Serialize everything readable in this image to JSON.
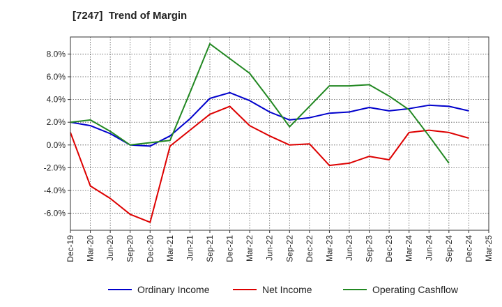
{
  "chart_data": {
    "type": "line",
    "title": "[7247]  Trend of Margin",
    "xlabel": "",
    "ylabel": "",
    "ylim": [
      -7.5,
      9.5
    ],
    "yticks": [
      -6,
      -4,
      -2,
      0,
      2,
      4,
      6,
      8
    ],
    "ytick_labels": [
      "-6.0%",
      "-4.0%",
      "-2.0%",
      "0.0%",
      "2.0%",
      "4.0%",
      "6.0%",
      "8.0%"
    ],
    "grid": true,
    "legend_position": "bottom",
    "categories": [
      "Dec-19",
      "Mar-20",
      "Jun-20",
      "Sep-20",
      "Dec-20",
      "Mar-21",
      "Jun-21",
      "Sep-21",
      "Dec-21",
      "Mar-22",
      "Jun-22",
      "Sep-22",
      "Dec-22",
      "Mar-23",
      "Jun-23",
      "Sep-23",
      "Dec-23",
      "Mar-24",
      "Jun-24",
      "Sep-24",
      "Dec-24",
      "Mar-25"
    ],
    "series": [
      {
        "name": "Ordinary Income",
        "color": "#0000cc",
        "values": [
          2.0,
          1.7,
          1.0,
          0.0,
          -0.1,
          0.8,
          2.3,
          4.1,
          4.6,
          3.9,
          2.9,
          2.2,
          2.4,
          2.8,
          2.9,
          3.3,
          3.0,
          3.2,
          3.5,
          3.4,
          3.0,
          null
        ]
      },
      {
        "name": "Net Income",
        "color": "#dd0000",
        "values": [
          1.1,
          -3.6,
          -4.7,
          -6.1,
          -6.8,
          -0.1,
          1.3,
          2.7,
          3.4,
          1.7,
          0.8,
          0.0,
          0.1,
          -1.8,
          -1.6,
          -1.0,
          -1.3,
          1.1,
          1.3,
          1.1,
          0.6,
          null
        ]
      },
      {
        "name": "Operating Cashflow",
        "color": "#228822",
        "values": [
          2.0,
          2.2,
          1.2,
          0.0,
          0.2,
          0.4,
          4.6,
          8.9,
          7.6,
          6.3,
          4.0,
          1.6,
          3.4,
          5.2,
          5.2,
          5.3,
          4.3,
          3.1,
          0.8,
          -1.6,
          null,
          null
        ]
      }
    ]
  }
}
